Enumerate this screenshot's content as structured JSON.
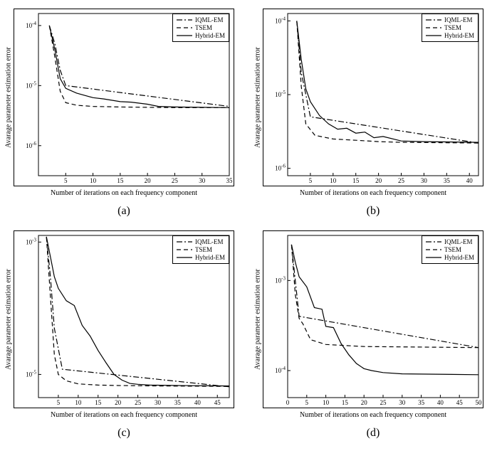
{
  "global": {
    "xlabel": "Number of iterations on each frequency component",
    "ylabel": "Avarage parameter estimation error",
    "bg_color": "#ffffff",
    "line_color": "#000000",
    "axis_fontsize": 10,
    "legend_fontsize": 9,
    "legend_items": [
      {
        "label": "IQML-EM",
        "style": "dashdot"
      },
      {
        "label": "TSEM",
        "style": "dashed"
      },
      {
        "label": "Hybrid-EM",
        "style": "solid"
      }
    ]
  },
  "panels": [
    {
      "id": "a",
      "caption": "(a)",
      "xlim": [
        0,
        35
      ],
      "xticks": [
        5,
        10,
        15,
        20,
        25,
        30,
        35
      ],
      "type": "line",
      "yscale": "log",
      "ylim_exp": [
        -6.5,
        -3.8
      ],
      "yticks_exp": [
        -4,
        -5,
        -6
      ],
      "series": [
        {
          "style": "dashdot",
          "x": [
            2,
            3,
            4,
            5,
            35
          ],
          "y": [
            0.0001,
            5e-05,
            1.8e-05,
            1e-05,
            4.5e-06
          ]
        },
        {
          "style": "dashed",
          "x": [
            2,
            3,
            4,
            5,
            7,
            10,
            15,
            20,
            25,
            35
          ],
          "y": [
            0.0001,
            3e-05,
            8e-06,
            5.2e-06,
            4.7e-06,
            4.5e-06,
            4.4e-06,
            4.35e-06,
            4.3e-06,
            4.3e-06
          ]
        },
        {
          "style": "solid",
          "x": [
            2,
            3,
            4,
            5,
            7,
            10,
            12,
            15,
            17,
            20,
            22,
            25,
            30,
            35
          ],
          "y": [
            0.0001,
            4e-05,
            1.3e-05,
            9e-06,
            7.5e-06,
            6.3e-06,
            6e-06,
            5.4e-06,
            5.3e-06,
            4.9e-06,
            4.5e-06,
            4.4e-06,
            4.35e-06,
            4.3e-06
          ]
        }
      ]
    },
    {
      "id": "b",
      "caption": "(b)",
      "xlim": [
        0,
        42
      ],
      "xticks": [
        5,
        10,
        15,
        20,
        25,
        30,
        35,
        40
      ],
      "type": "line",
      "yscale": "log",
      "ylim_exp": [
        -6.1,
        -3.9
      ],
      "yticks_exp": [
        -4,
        -5,
        -6
      ],
      "series": [
        {
          "style": "dashdot",
          "x": [
            2,
            3,
            5,
            42
          ],
          "y": [
            0.0001,
            2e-05,
            5e-06,
            2.2e-06
          ]
        },
        {
          "style": "dashed",
          "x": [
            2,
            3,
            4,
            6,
            10,
            15,
            20,
            25,
            42
          ],
          "y": [
            0.0001,
            1.3e-05,
            4e-06,
            2.8e-06,
            2.5e-06,
            2.4e-06,
            2.3e-06,
            2.25e-06,
            2.2e-06
          ]
        },
        {
          "style": "solid",
          "x": [
            2,
            3,
            4,
            5,
            7,
            9,
            11,
            13,
            15,
            17,
            19,
            21,
            25,
            30,
            42
          ],
          "y": [
            0.0001,
            3e-05,
            1.2e-05,
            8e-06,
            5.2e-06,
            4e-06,
            3.4e-06,
            3.5e-06,
            3e-06,
            3.1e-06,
            2.6e-06,
            2.7e-06,
            2.35e-06,
            2.3e-06,
            2.25e-06
          ]
        }
      ]
    },
    {
      "id": "c",
      "caption": "(c)",
      "xlim": [
        0,
        48
      ],
      "xticks": [
        5,
        10,
        15,
        20,
        25,
        30,
        35,
        40,
        45
      ],
      "type": "line",
      "yscale": "log",
      "ylim_exp": [
        -5.35,
        -2.9
      ],
      "yticks_exp": [
        -3,
        -5
      ],
      "series": [
        {
          "style": "dashdot",
          "x": [
            2,
            3,
            4,
            6,
            48
          ],
          "y": [
            0.0012,
            0.0003,
            5e-05,
            1.2e-05,
            6.5e-06
          ]
        },
        {
          "style": "dashed",
          "x": [
            2,
            3,
            4,
            5,
            7,
            10,
            15,
            20,
            30,
            48
          ],
          "y": [
            0.0012,
            0.00015,
            2e-05,
            1e-05,
            8e-06,
            7.2e-06,
            6.9e-06,
            6.8e-06,
            6.7e-06,
            6.6e-06
          ]
        },
        {
          "style": "solid",
          "x": [
            2,
            3,
            4,
            5,
            7,
            9,
            11,
            13,
            15,
            17,
            19,
            21,
            23,
            25,
            28,
            35,
            48
          ],
          "y": [
            0.0012,
            0.0006,
            0.0003,
            0.0002,
            0.00013,
            0.00011,
            5.5e-05,
            3.8e-05,
            2.3e-05,
            1.5e-05,
            1e-05,
            8.2e-06,
            7.3e-06,
            7.1e-06,
            6.9e-06,
            6.8e-06,
            6.7e-06
          ]
        }
      ]
    },
    {
      "id": "d",
      "caption": "(d)",
      "xlim": [
        0,
        50
      ],
      "xticks": [
        0,
        5,
        10,
        15,
        20,
        25,
        30,
        35,
        40,
        45,
        50
      ],
      "type": "line",
      "yscale": "log",
      "ylim_exp": [
        -4.3,
        -2.5
      ],
      "yticks_exp": [
        -3,
        -4
      ],
      "series": [
        {
          "style": "dashdot",
          "x": [
            1,
            2,
            3,
            50
          ],
          "y": [
            0.0025,
            0.001,
            0.0004,
            0.00018
          ]
        },
        {
          "style": "dashed",
          "x": [
            1,
            2,
            3,
            4,
            6,
            10,
            20,
            50
          ],
          "y": [
            0.0025,
            0.0007,
            0.00038,
            0.00033,
            0.00022,
            0.000195,
            0.000185,
            0.00018
          ]
        },
        {
          "style": "solid",
          "x": [
            1,
            2,
            3,
            5,
            7,
            9,
            10,
            12,
            14,
            16,
            18,
            20,
            22,
            25,
            30,
            50
          ],
          "y": [
            0.0025,
            0.0016,
            0.0011,
            0.00085,
            0.0005,
            0.00048,
            0.00031,
            0.0003,
            0.0002,
            0.00015,
            0.00012,
            0.000105,
            0.0001,
            9.5e-05,
            9.2e-05,
            9e-05
          ]
        }
      ]
    }
  ]
}
